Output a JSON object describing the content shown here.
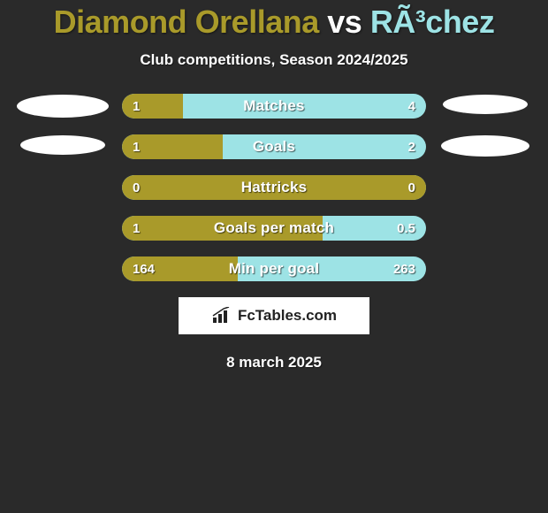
{
  "colors": {
    "background": "#2a2a2a",
    "player1_accent": "#a99a2a",
    "player2_accent": "#9de3e5",
    "white": "#ffffff",
    "text_shadow": "rgba(0,0,0,0.5)"
  },
  "title": {
    "player1_name": "Diamond Orellana",
    "vs_text": "vs",
    "player2_name": "RÃ³chez",
    "player1_color": "#a99a2a",
    "vs_color": "#ffffff",
    "player2_color": "#9de3e5",
    "fontsize": 36
  },
  "subtitle": "Club competitions, Season 2024/2025",
  "side_shapes": {
    "left_color": "#ffffff",
    "right_color": "#ffffff",
    "rows_visible": [
      0,
      1
    ]
  },
  "stats": [
    {
      "label": "Matches",
      "left_value": "1",
      "right_value": "4",
      "left_num": 1,
      "right_num": 4,
      "fill_pct": 20,
      "show_left_shape": true,
      "show_right_shape": true,
      "left_shape_w": 104,
      "left_shape_h": 26,
      "right_shape_w": 96,
      "right_shape_h": 22
    },
    {
      "label": "Goals",
      "left_value": "1",
      "right_value": "2",
      "left_num": 1,
      "right_num": 2,
      "fill_pct": 33,
      "show_left_shape": true,
      "show_right_shape": true,
      "left_shape_w": 96,
      "left_shape_h": 22,
      "right_shape_w": 100,
      "right_shape_h": 24
    },
    {
      "label": "Hattricks",
      "left_value": "0",
      "right_value": "0",
      "left_num": 0,
      "right_num": 0,
      "fill_pct": 100,
      "show_left_shape": false,
      "show_right_shape": false
    },
    {
      "label": "Goals per match",
      "left_value": "1",
      "right_value": "0.5",
      "left_num": 1,
      "right_num": 0.5,
      "fill_pct": 66,
      "show_left_shape": false,
      "show_right_shape": false
    },
    {
      "label": "Min per goal",
      "left_value": "164",
      "right_value": "263",
      "left_num": 164,
      "right_num": 263,
      "fill_pct": 38,
      "show_left_shape": false,
      "show_right_shape": false
    }
  ],
  "bar_style": {
    "track_color": "#9de3e5",
    "fill_color": "#a99a2a",
    "height": 28,
    "radius": 14,
    "label_fontsize": 17,
    "value_fontsize": 15
  },
  "brand": {
    "text": "FcTables.com",
    "background": "#ffffff",
    "color": "#222222"
  },
  "footer_date": "8 march 2025"
}
